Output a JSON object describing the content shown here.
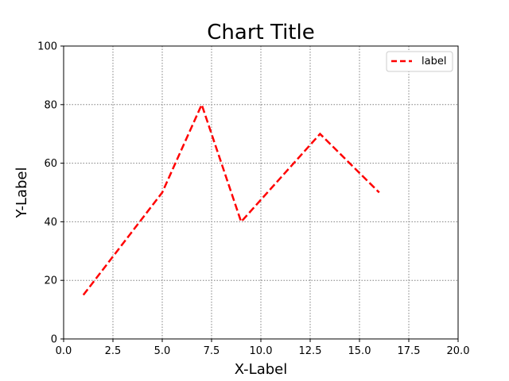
{
  "chart_data": {
    "type": "line",
    "title": "Chart Title",
    "xlabel": "X-Label",
    "ylabel": "Y-Label",
    "xlim": [
      0,
      20
    ],
    "ylim": [
      0,
      100
    ],
    "xticks": [
      0,
      2.5,
      5,
      7.5,
      10,
      12.5,
      15,
      17.5,
      20
    ],
    "xtick_labels": [
      "0.0",
      "2.5",
      "5.0",
      "7.5",
      "10.0",
      "12.5",
      "15.0",
      "17.5",
      "20.0"
    ],
    "yticks": [
      0,
      20,
      40,
      60,
      80,
      100
    ],
    "ytick_labels": [
      "0",
      "20",
      "40",
      "60",
      "80",
      "100"
    ],
    "grid": true,
    "legend_position": "top-right",
    "series": [
      {
        "name": "label",
        "color": "#ff0000",
        "line_style": "dashed",
        "x": [
          1,
          5,
          7,
          9,
          13,
          16
        ],
        "y": [
          15,
          50,
          80,
          40,
          70,
          50
        ]
      }
    ]
  }
}
